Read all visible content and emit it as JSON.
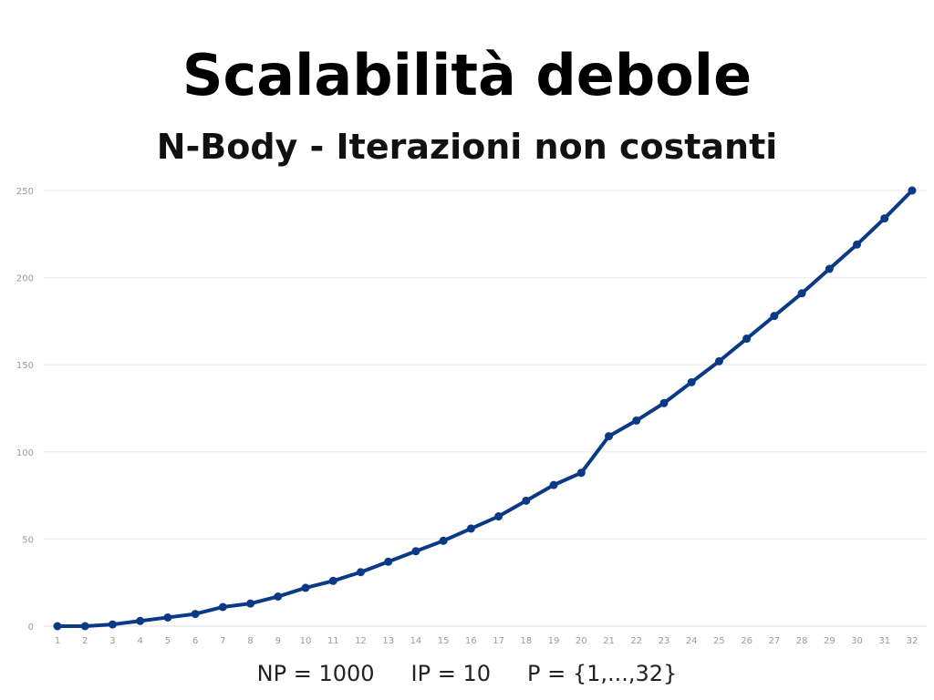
{
  "title": "Scalabilità debole",
  "subtitle": "N-Body - Iterazioni non costanti",
  "footer": {
    "np": "NP = 1000",
    "ip": "IP = 10",
    "p": "P = {1,...,32}"
  },
  "colors": {
    "line": "#0a3a86",
    "grid": "#ececec",
    "tick_label": "#9a9a9a"
  },
  "chart_data": {
    "type": "line",
    "categories": [
      "1",
      "2",
      "3",
      "4",
      "5",
      "6",
      "7",
      "8",
      "9",
      "10",
      "11",
      "12",
      "13",
      "14",
      "15",
      "16",
      "17",
      "18",
      "19",
      "20",
      "21",
      "22",
      "23",
      "24",
      "25",
      "26",
      "27",
      "28",
      "29",
      "30",
      "31",
      "32"
    ],
    "series": [
      {
        "values": [
          0,
          0,
          1,
          3,
          5,
          7,
          11,
          13,
          17,
          22,
          26,
          31,
          37,
          43,
          49,
          56,
          63,
          72,
          81,
          88,
          109,
          118,
          128,
          140,
          152,
          165,
          178,
          191,
          205,
          219,
          234,
          250
        ]
      }
    ],
    "yticks": [
      0,
      50,
      100,
      150,
      200,
      250
    ],
    "ylim": [
      0,
      250
    ],
    "xlabel": "",
    "ylabel": "",
    "grid": "horizontal",
    "legend": "none"
  }
}
